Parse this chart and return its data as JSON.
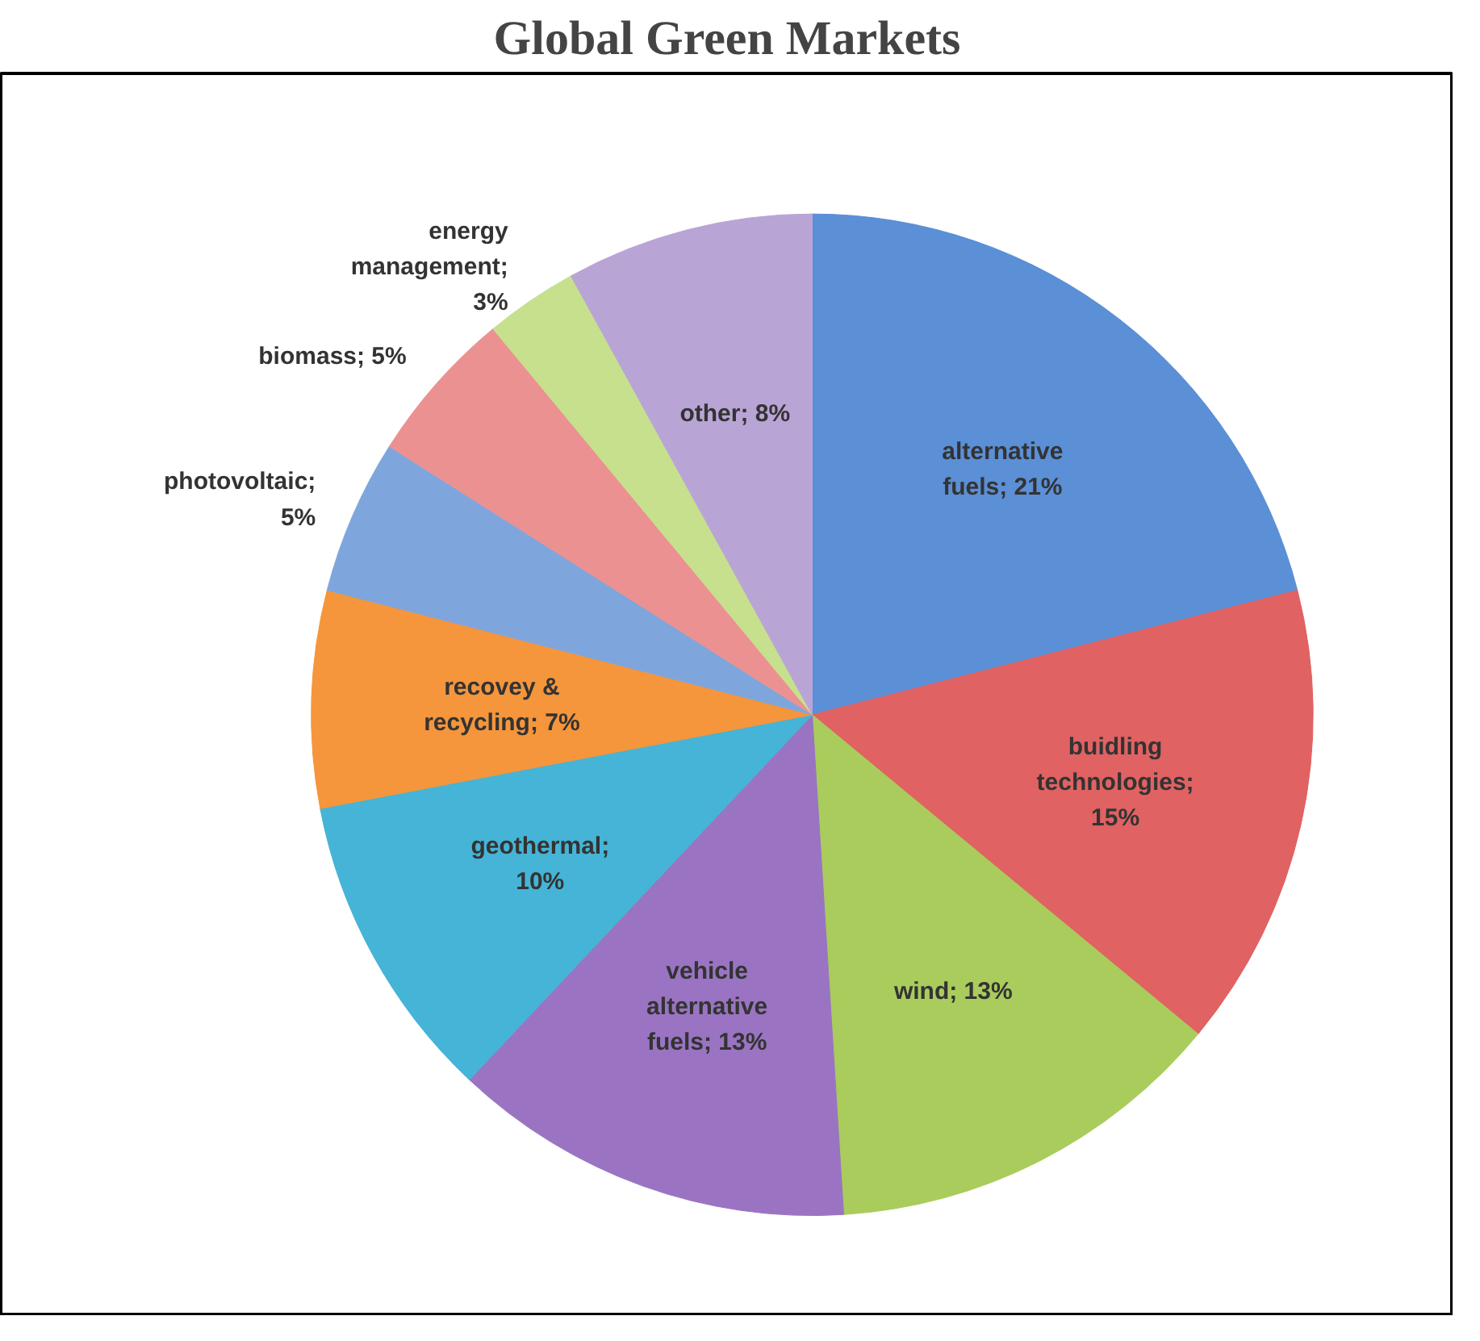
{
  "chart_data": {
    "type": "pie",
    "title": "Global Green Markets",
    "categories": [
      "alternative fuels; 21%",
      "buidling technologies; 15%",
      "wind; 13%",
      "vehicle alternative fuels; 13%",
      "geothermal; 10%",
      "recovey & recycling; 7%",
      "photovoltaic; 5%",
      "biomass; 5%",
      "energy management; 3%",
      "other; 8%"
    ],
    "values": [
      21,
      15,
      13,
      13,
      10,
      7,
      5,
      5,
      3,
      8
    ],
    "colors": [
      "#5b8fd6",
      "#e06262",
      "#a9cc5c",
      "#9a74c2",
      "#45b4d6",
      "#f5953c",
      "#7fa6dc",
      "#ec9191",
      "#c6e08e",
      "#b9a4d6"
    ]
  }
}
